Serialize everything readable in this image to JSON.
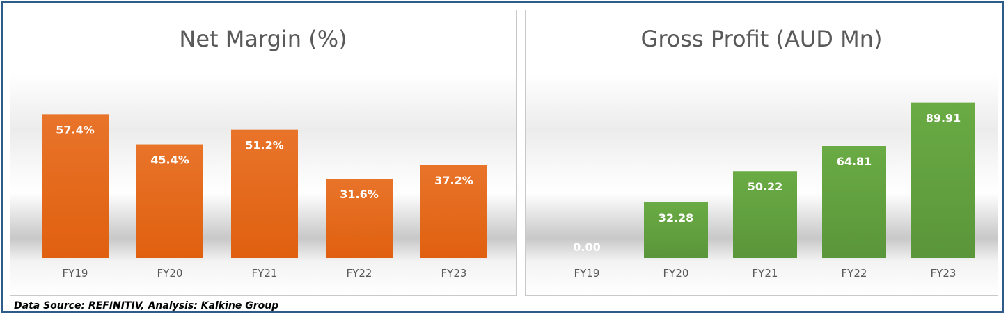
{
  "chart_data": [
    {
      "type": "bar",
      "title": "Net Margin (%)",
      "categories": [
        "FY19",
        "FY20",
        "FY21",
        "FY22",
        "FY23"
      ],
      "values": [
        57.4,
        45.4,
        51.2,
        31.6,
        37.2
      ],
      "value_labels": [
        "57.4%",
        "45.4%",
        "51.2%",
        "31.6%",
        "37.2%"
      ],
      "color": "#e8742a",
      "color_dark": "#e0600f",
      "ylim": [
        0,
        60
      ],
      "grid": false,
      "legend": "none"
    },
    {
      "type": "bar",
      "title": "Gross Profit (AUD Mn)",
      "categories": [
        "FY19",
        "FY20",
        "FY21",
        "FY22",
        "FY23"
      ],
      "values": [
        0.0,
        32.28,
        50.22,
        64.81,
        89.91
      ],
      "value_labels": [
        "0.00",
        "32.28",
        "50.22",
        "64.81",
        "89.91"
      ],
      "color": "#6aab44",
      "color_dark": "#5a963a",
      "ylim": [
        0,
        95
      ],
      "grid": false,
      "legend": "none"
    }
  ],
  "footer": {
    "source": "Data Source: REFINITIV, Analysis: Kalkine Group"
  }
}
